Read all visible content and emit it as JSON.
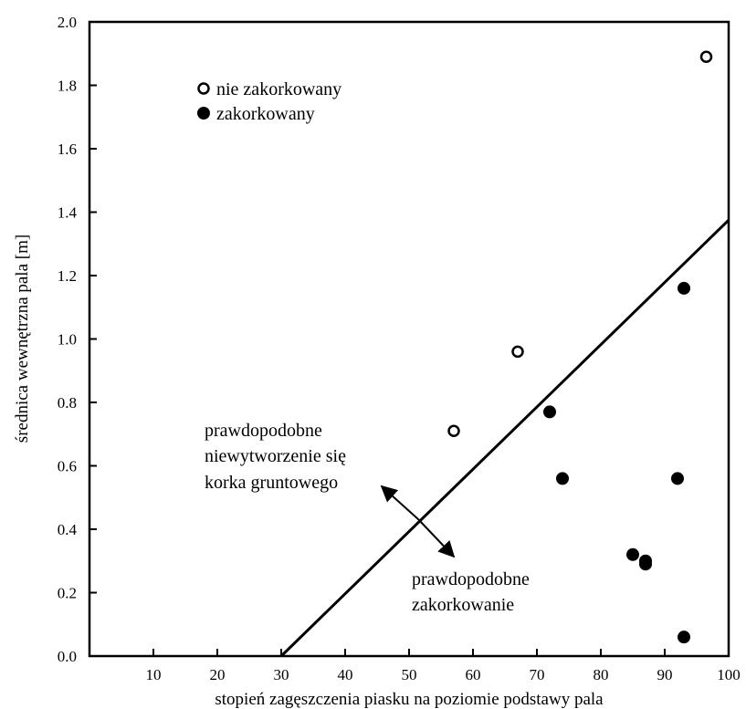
{
  "chart_data": {
    "type": "scatter",
    "xlabel": "stopień zagęszczenia piasku na poziomie podstawy pala",
    "ylabel": "średnica wewnętrzna pala [m]",
    "xlim": [
      0,
      100
    ],
    "ylim": [
      0,
      2.0
    ],
    "x_ticks": [
      10,
      20,
      30,
      40,
      50,
      60,
      70,
      80,
      90,
      100
    ],
    "y_ticks": [
      "0.0",
      "0.2",
      "0.4",
      "0.6",
      "0.8",
      "1.0",
      "1.2",
      "1.4",
      "1.6",
      "1.8",
      "2.0"
    ],
    "grid": false,
    "legend": {
      "position": "top-left",
      "entries": [
        {
          "label": "nie zakorkowany",
          "marker": "open-circle"
        },
        {
          "label": "zakorkowany",
          "marker": "filled-circle"
        }
      ]
    },
    "series": [
      {
        "name": "nie zakorkowany",
        "marker": "open-circle",
        "points": [
          {
            "x": 57,
            "y": 0.71
          },
          {
            "x": 67,
            "y": 0.96
          },
          {
            "x": 96.5,
            "y": 1.89
          }
        ]
      },
      {
        "name": "zakorkowany",
        "marker": "filled-circle",
        "points": [
          {
            "x": 72,
            "y": 0.77
          },
          {
            "x": 74,
            "y": 0.56
          },
          {
            "x": 85,
            "y": 0.32
          },
          {
            "x": 87,
            "y": 0.3
          },
          {
            "x": 87,
            "y": 0.29
          },
          {
            "x": 92,
            "y": 0.56
          },
          {
            "x": 93,
            "y": 1.16
          },
          {
            "x": 93,
            "y": 0.06
          }
        ]
      }
    ],
    "boundary_line": {
      "points": [
        {
          "x": 30,
          "y": 0.0
        },
        {
          "x": 100,
          "y": 1.375
        }
      ]
    },
    "annotations": [
      {
        "lines": [
          "prawdopodobne",
          "niewytworzenie się",
          "korka gruntowego"
        ]
      },
      {
        "lines": [
          "prawdopodobne",
          "zakorkowanie"
        ]
      }
    ],
    "colors": {
      "ink": "#000000",
      "background": "#ffffff"
    }
  }
}
